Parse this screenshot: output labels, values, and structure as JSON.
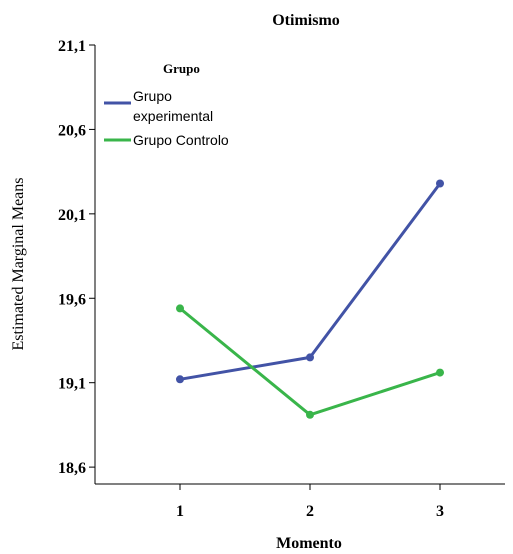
{
  "chart_data": {
    "type": "line",
    "title": "Otimismo",
    "xlabel": "Momento",
    "ylabel": "Estimated Marginal Means",
    "categories": [
      "1",
      "2",
      "3"
    ],
    "yticks": [
      "18,6",
      "19,1",
      "19,6",
      "20,1",
      "20,6",
      "21,1"
    ],
    "ytick_values": [
      18.6,
      19.1,
      19.6,
      20.1,
      20.6,
      21.1
    ],
    "ylim": [
      18.5,
      21.1
    ],
    "legend": {
      "title": "Grupo",
      "placement": "top-left",
      "entries": [
        "Grupo experimental",
        "Grupo Controlo"
      ]
    },
    "series": [
      {
        "name": "Grupo experimental",
        "color": "#4253a6",
        "values": [
          19.12,
          19.25,
          20.28
        ]
      },
      {
        "name": "Grupo Controlo",
        "color": "#39b54a",
        "values": [
          19.54,
          18.91,
          19.16
        ]
      }
    ]
  }
}
